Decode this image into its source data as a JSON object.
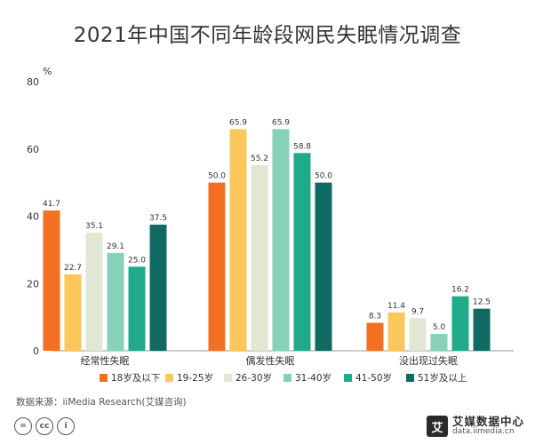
{
  "title": "2021年中国不同年龄段网民失眠情况调查",
  "source": "数据来源：iiMedia Research(艾媒咨询)",
  "license_icons": [
    "=",
    "cc",
    "i"
  ],
  "brand": {
    "mark": "艾",
    "name": "艾媒数据中心",
    "url": "data.iimedia.cn"
  },
  "colors": [
    "#f36f21",
    "#fcc75a",
    "#e2e7d3",
    "#88d1b9",
    "#1fab8a",
    "#106a61"
  ],
  "chart_data": {
    "type": "bar",
    "title": "2021年中国不同年龄段网民失眠情况调查",
    "ylabel": "%",
    "ylim": [
      0,
      80
    ],
    "yticks": [
      0,
      20,
      40,
      60,
      80
    ],
    "grid": false,
    "legend_position": "bottom",
    "categories": [
      "经常性失眠",
      "偶发性失眠",
      "没出现过失眠"
    ],
    "series": [
      {
        "name": "18岁及以下",
        "values": [
          41.7,
          50.0,
          8.3
        ],
        "labels": [
          "41.7",
          "50.0",
          "8.3"
        ]
      },
      {
        "name": "19-25岁",
        "values": [
          22.7,
          65.9,
          11.4
        ],
        "labels": [
          "22.7",
          "65.9",
          "11.4"
        ]
      },
      {
        "name": "26-30岁",
        "values": [
          35.1,
          55.2,
          9.7
        ],
        "labels": [
          "35.1",
          "55.2",
          "9.7"
        ]
      },
      {
        "name": "31-40岁",
        "values": [
          29.1,
          65.9,
          5.0
        ],
        "labels": [
          "29.1",
          "65.9",
          "5.0"
        ]
      },
      {
        "name": "41-50岁",
        "values": [
          25.0,
          58.8,
          16.2
        ],
        "labels": [
          "25.0",
          "58.8",
          "16.2"
        ]
      },
      {
        "name": "51岁及以上",
        "values": [
          37.5,
          50.0,
          12.5
        ],
        "labels": [
          "37.5",
          "50.0",
          "12.5"
        ]
      }
    ]
  }
}
